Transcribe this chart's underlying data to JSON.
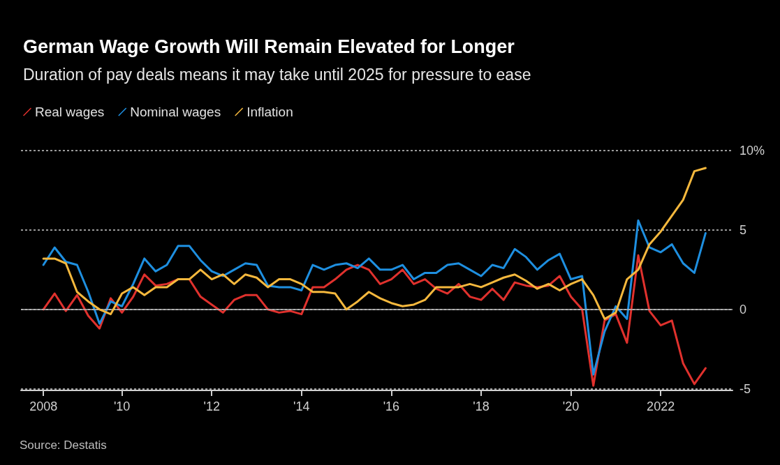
{
  "chart_data": {
    "type": "line",
    "title": "German Wage Growth Will Remain Elevated for Longer",
    "subtitle": "Duration of pay deals means it may take until 2025 for pressure to ease",
    "annotations": [
      "Source: Destatis"
    ],
    "x": [
      2008.25,
      2008.5,
      2008.75,
      2009,
      2009.25,
      2009.5,
      2009.75,
      2010,
      2010.25,
      2010.5,
      2010.75,
      2011,
      2011.25,
      2011.5,
      2011.75,
      2012,
      2012.25,
      2012.5,
      2012.75,
      2013,
      2013.25,
      2013.5,
      2013.75,
      2014,
      2014.25,
      2014.5,
      2014.75,
      2015,
      2015.25,
      2015.5,
      2015.75,
      2016,
      2016.25,
      2016.5,
      2016.75,
      2017,
      2017.25,
      2017.5,
      2017.75,
      2018,
      2018.25,
      2018.5,
      2018.75,
      2019,
      2019.25,
      2019.5,
      2019.75,
      2020,
      2020.25,
      2020.5,
      2020.75,
      2021,
      2021.25,
      2021.5,
      2021.75,
      2022,
      2022.25,
      2022.5,
      2022.75,
      2023
    ],
    "series": [
      {
        "name": "Real wages",
        "color": "#e0312d",
        "values": [
          0,
          1.0,
          -0.1,
          0.9,
          -0.4,
          -1.2,
          0.7,
          -0.2,
          0.8,
          2.2,
          1.5,
          1.6,
          1.9,
          1.9,
          0.8,
          0.3,
          -0.2,
          0.6,
          0.9,
          0.9,
          0,
          -0.2,
          -0.1,
          -0.3,
          1.4,
          1.4,
          1.9,
          2.5,
          2.8,
          2.5,
          1.6,
          1.9,
          2.5,
          1.6,
          1.9,
          1.3,
          1.0,
          1.6,
          0.8,
          0.6,
          1.3,
          0.6,
          1.7,
          1.5,
          1.4,
          1.5,
          2.1,
          0.8,
          0,
          -4.8,
          -0.7,
          -0.3,
          -2.1,
          3.4,
          -0.1,
          -1.0,
          -0.7,
          -3.4,
          -4.7,
          -3.7
        ]
      },
      {
        "name": "Nominal wages",
        "color": "#1e8fe0",
        "values": [
          2.8,
          3.9,
          3.0,
          2.8,
          1.1,
          -0.9,
          0.5,
          0.2,
          1.6,
          3.2,
          2.4,
          2.8,
          4.0,
          4.0,
          3.1,
          2.4,
          2.1,
          2.5,
          2.9,
          2.8,
          1.5,
          1.4,
          1.4,
          1.2,
          2.8,
          2.5,
          2.8,
          2.9,
          2.6,
          3.2,
          2.5,
          2.5,
          2.8,
          1.9,
          2.3,
          2.3,
          2.8,
          2.9,
          2.5,
          2.1,
          2.8,
          2.6,
          3.8,
          3.3,
          2.5,
          3.1,
          3.5,
          1.9,
          2.1,
          -4.1,
          -1.4,
          0.2,
          -0.6,
          5.6,
          3.9,
          3.6,
          4.1,
          2.9,
          2.3,
          4.8
        ]
      },
      {
        "name": "Inflation",
        "color": "#f5b83d",
        "values": [
          3.2,
          3.2,
          2.9,
          1.1,
          0.5,
          0,
          -0.3,
          1.0,
          1.4,
          0.9,
          1.4,
          1.4,
          1.9,
          1.9,
          2.5,
          1.9,
          2.2,
          1.6,
          2.2,
          2.0,
          1.4,
          1.9,
          1.9,
          1.6,
          1.1,
          1.1,
          1.0,
          0,
          0.5,
          1.1,
          0.7,
          0.4,
          0.2,
          0.3,
          0.6,
          1.4,
          1.4,
          1.4,
          1.6,
          1.4,
          1.7,
          2.0,
          2.2,
          1.8,
          1.3,
          1.6,
          1.2,
          1.6,
          1.9,
          0.9,
          -0.6,
          -0.2,
          1.9,
          2.5,
          4.1,
          4.9,
          5.9,
          6.9,
          8.7,
          8.9
        ]
      }
    ],
    "xlim": [
      2007.75,
      2023.6
    ],
    "xticks": [
      {
        "value": 2008.25,
        "label": "2008"
      },
      {
        "value": 2010,
        "label": "'10"
      },
      {
        "value": 2012,
        "label": "'12"
      },
      {
        "value": 2014,
        "label": "'14"
      },
      {
        "value": 2016,
        "label": "'16"
      },
      {
        "value": 2018,
        "label": "'18"
      },
      {
        "value": 2020,
        "label": "'20"
      },
      {
        "value": 2022,
        "label": "2022"
      }
    ],
    "ylim": [
      -5.1,
      10
    ],
    "yticks": [
      -5,
      0,
      5,
      {
        "value": 10,
        "label": "10%"
      }
    ],
    "grid": "y",
    "ref_lines": [
      {
        "axis": "y",
        "value": 0,
        "color": "#bbbbbb",
        "line_style": "solid"
      }
    ],
    "legend": "top left",
    "marker": "none",
    "line_style": "solid"
  }
}
